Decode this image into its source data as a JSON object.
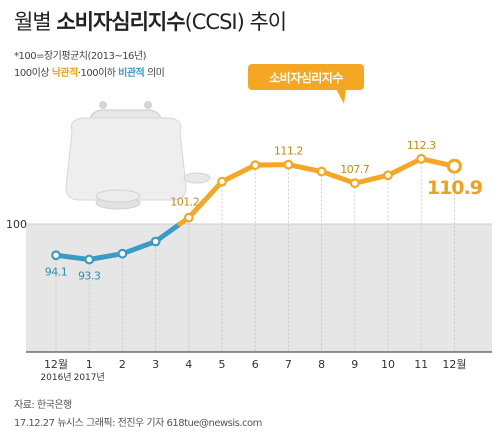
{
  "header": {
    "title_prefix": "월별",
    "title_bold": "소비자심리지수",
    "title_suffix": "(CCSI) 추이",
    "note1": "*100=장기평균치(2013~16년)",
    "note2_a": "100이상",
    "note2_opt": "낙관적",
    "note2_b": "·100이하",
    "note2_pes": "비관적",
    "note2_c": "의미"
  },
  "footer": {
    "source": "자료: 한국은행",
    "credit": "17.12.27 뉴시스 그래픽: 전진우 기자 618tue@newsis.com"
  },
  "chart_data": {
    "type": "line",
    "categories": [
      "12월",
      "1",
      "2",
      "3",
      "4",
      "5",
      "6",
      "7",
      "8",
      "9",
      "10",
      "11",
      "12월"
    ],
    "year_labels": [
      "2016년",
      "2017년"
    ],
    "series": [
      {
        "name": "소비자심리지수",
        "values": [
          94.1,
          93.3,
          94.4,
          96.7,
          101.2,
          108.0,
          111.1,
          111.2,
          109.9,
          107.7,
          109.2,
          112.3,
          110.9
        ]
      }
    ],
    "data_labels": [
      {
        "index": 0,
        "text": "94.1"
      },
      {
        "index": 1,
        "text": "93.3"
      },
      {
        "index": 4,
        "text": "101.2"
      },
      {
        "index": 7,
        "text": "111.2"
      },
      {
        "index": 9,
        "text": "107.7"
      },
      {
        "index": 11,
        "text": "112.3"
      },
      {
        "index": 12,
        "text": "110.9"
      }
    ],
    "reference_line": {
      "value": 100,
      "label": "100"
    },
    "ylim": [
      85,
      115
    ],
    "colors": {
      "optimistic": "#f5a623",
      "pessimistic": "#3a9bc4",
      "below_band": "#e6e6e6",
      "axis": "#555555"
    }
  }
}
